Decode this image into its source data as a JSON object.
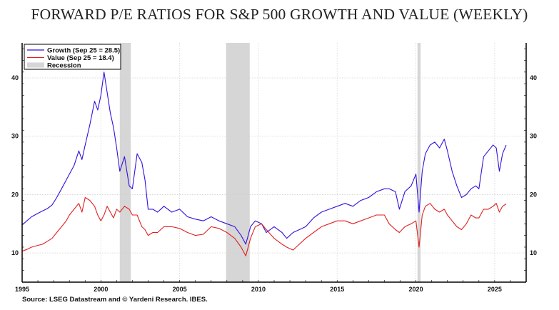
{
  "title": "FORWARD P/E RATIOS FOR S&P 500 GROWTH AND VALUE (WEEKLY)",
  "source": "Source: LSEG Datastream and © Yardeni Research. IBES.",
  "chart_data": {
    "type": "line",
    "title": "FORWARD P/E RATIOS FOR S&P 500 GROWTH AND VALUE (WEEKLY)",
    "xlabel": "",
    "ylabel": "",
    "xlim": [
      1995,
      2027.0
    ],
    "ylim": [
      5,
      46
    ],
    "x_ticks": [
      1995,
      2000,
      2005,
      2010,
      2015,
      2020,
      2025
    ],
    "y_ticks": [
      10,
      20,
      30,
      40
    ],
    "y_axis_both_sides": true,
    "grid": "dotted",
    "legend_position": "top-left",
    "legend": [
      {
        "label": "Growth (Sep 25 = 28.5)",
        "color": "#3311dd",
        "kind": "line"
      },
      {
        "label": "Value (Sep 25 = 18.4)",
        "color": "#e02020",
        "kind": "line"
      },
      {
        "label": "Recession",
        "color": "#d6d6d6",
        "kind": "band"
      }
    ],
    "recessions": [
      [
        2001.2,
        2001.9
      ],
      [
        2007.95,
        2009.45
      ],
      [
        2020.1,
        2020.3
      ]
    ],
    "series": [
      {
        "name": "Growth",
        "color": "#3311dd",
        "x": [
          1995.0,
          1995.3,
          1995.6,
          1996.0,
          1996.3,
          1996.6,
          1996.9,
          1997.2,
          1997.5,
          1997.8,
          1998.0,
          1998.3,
          1998.6,
          1998.8,
          1999.0,
          1999.3,
          1999.6,
          1999.8,
          2000.0,
          2000.2,
          2000.4,
          2000.6,
          2000.8,
          2001.0,
          2001.2,
          2001.5,
          2001.8,
          2002.0,
          2002.3,
          2002.6,
          2002.8,
          2003.0,
          2003.3,
          2003.6,
          2004.0,
          2004.5,
          2005.0,
          2005.5,
          2006.0,
          2006.5,
          2007.0,
          2007.5,
          2008.0,
          2008.5,
          2008.9,
          2009.2,
          2009.5,
          2009.8,
          2010.2,
          2010.5,
          2011.0,
          2011.5,
          2011.8,
          2012.2,
          2012.6,
          2013.0,
          2013.5,
          2014.0,
          2014.5,
          2015.0,
          2015.5,
          2016.0,
          2016.5,
          2017.0,
          2017.5,
          2018.0,
          2018.3,
          2018.7,
          2018.95,
          2019.3,
          2019.7,
          2020.0,
          2020.2,
          2020.4,
          2020.6,
          2020.9,
          2021.2,
          2021.5,
          2021.8,
          2022.0,
          2022.3,
          2022.6,
          2022.9,
          2023.2,
          2023.5,
          2023.8,
          2024.0,
          2024.3,
          2024.6,
          2024.9,
          2025.1,
          2025.3,
          2025.5,
          2025.73
        ],
        "values": [
          14.8,
          15.5,
          16.2,
          16.8,
          17.2,
          17.6,
          18.2,
          19.5,
          21.0,
          22.5,
          23.5,
          25.0,
          27.5,
          26.0,
          28.5,
          32.0,
          36.0,
          34.5,
          37.0,
          41.0,
          37.5,
          34.0,
          31.5,
          28.0,
          24.0,
          26.5,
          21.5,
          21.0,
          27.0,
          25.5,
          22.5,
          17.5,
          17.5,
          17.0,
          18.0,
          17.0,
          17.5,
          16.2,
          15.8,
          15.5,
          16.2,
          15.5,
          15.0,
          14.5,
          13.0,
          11.5,
          14.5,
          15.5,
          15.0,
          13.5,
          14.5,
          13.5,
          12.5,
          13.5,
          14.0,
          14.5,
          16.0,
          17.0,
          17.5,
          18.0,
          18.5,
          18.0,
          19.0,
          19.5,
          20.5,
          21.0,
          21.0,
          20.5,
          17.5,
          20.5,
          21.5,
          23.5,
          17.0,
          24.0,
          27.0,
          28.5,
          29.0,
          28.0,
          29.5,
          27.5,
          24.0,
          21.5,
          19.5,
          20.0,
          21.0,
          21.5,
          21.0,
          26.5,
          27.5,
          28.5,
          28.0,
          24.0,
          27.0,
          28.5
        ]
      },
      {
        "name": "Value",
        "color": "#e02020",
        "x": [
          1995.0,
          1995.3,
          1995.6,
          1996.0,
          1996.3,
          1996.6,
          1996.9,
          1997.2,
          1997.5,
          1997.8,
          1998.0,
          1998.3,
          1998.6,
          1998.8,
          1999.0,
          1999.3,
          1999.6,
          1999.8,
          2000.0,
          2000.2,
          2000.4,
          2000.6,
          2000.8,
          2001.0,
          2001.2,
          2001.5,
          2001.8,
          2002.0,
          2002.3,
          2002.6,
          2002.8,
          2003.0,
          2003.3,
          2003.6,
          2004.0,
          2004.5,
          2005.0,
          2005.5,
          2006.0,
          2006.5,
          2007.0,
          2007.5,
          2008.0,
          2008.5,
          2008.9,
          2009.2,
          2009.5,
          2009.8,
          2010.2,
          2010.5,
          2011.0,
          2011.5,
          2011.8,
          2012.2,
          2012.6,
          2013.0,
          2013.5,
          2014.0,
          2014.5,
          2015.0,
          2015.5,
          2016.0,
          2016.5,
          2017.0,
          2017.5,
          2018.0,
          2018.3,
          2018.7,
          2018.95,
          2019.3,
          2019.7,
          2020.0,
          2020.2,
          2020.4,
          2020.6,
          2020.9,
          2021.2,
          2021.5,
          2021.8,
          2022.0,
          2022.3,
          2022.6,
          2022.9,
          2023.2,
          2023.5,
          2023.8,
          2024.0,
          2024.3,
          2024.6,
          2024.9,
          2025.1,
          2025.3,
          2025.5,
          2025.73
        ],
        "values": [
          10.3,
          10.6,
          11.0,
          11.3,
          11.5,
          12.0,
          12.5,
          13.5,
          14.5,
          15.5,
          16.5,
          17.5,
          18.5,
          17.0,
          19.5,
          19.0,
          18.0,
          16.5,
          15.5,
          16.5,
          18.0,
          17.0,
          16.0,
          17.5,
          17.0,
          18.0,
          17.5,
          16.5,
          16.5,
          14.5,
          14.0,
          13.0,
          13.5,
          13.5,
          14.5,
          14.5,
          14.2,
          13.5,
          13.0,
          13.2,
          14.5,
          14.2,
          13.5,
          12.5,
          11.0,
          9.5,
          12.5,
          14.5,
          15.0,
          14.0,
          12.5,
          11.5,
          11.0,
          10.5,
          11.5,
          12.5,
          13.5,
          14.5,
          15.0,
          15.5,
          15.5,
          15.0,
          15.5,
          16.0,
          16.5,
          16.5,
          15.0,
          14.0,
          13.5,
          14.5,
          15.0,
          15.5,
          11.0,
          16.5,
          18.0,
          18.5,
          17.5,
          17.0,
          17.5,
          16.5,
          15.5,
          14.5,
          14.0,
          15.0,
          16.5,
          16.0,
          16.0,
          17.5,
          17.5,
          18.0,
          18.5,
          17.0,
          18.0,
          18.4
        ]
      }
    ]
  }
}
